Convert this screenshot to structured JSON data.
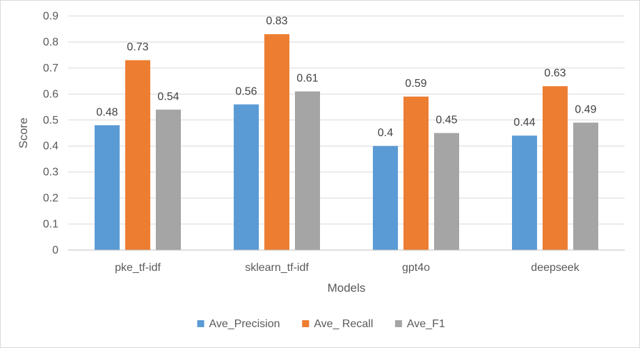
{
  "chart_data": {
    "type": "bar",
    "title": "",
    "xlabel": "Models",
    "ylabel": "Score",
    "categories": [
      "pke_tf-idf",
      "sklearn_tf-idf",
      "gpt4o",
      "deepseek"
    ],
    "series": [
      {
        "name": "Ave_Precision",
        "values": [
          0.48,
          0.56,
          0.4,
          0.44
        ],
        "labels": [
          "0.48",
          "0.56",
          "0.4",
          "0.44"
        ],
        "color": "#5b9bd5"
      },
      {
        "name": "Ave_ Recall",
        "values": [
          0.73,
          0.83,
          0.59,
          0.63
        ],
        "labels": [
          "0.73",
          "0.83",
          "0.59",
          "0.63"
        ],
        "color": "#ed7d31"
      },
      {
        "name": "Ave_F1",
        "values": [
          0.54,
          0.61,
          0.45,
          0.49
        ],
        "labels": [
          "0.54",
          "0.61",
          "0.45",
          "0.49"
        ],
        "color": "#a5a5a5"
      }
    ],
    "ylim": [
      0,
      0.9
    ],
    "yticks": [
      "0",
      "0.1",
      "0.2",
      "0.3",
      "0.4",
      "0.5",
      "0.6",
      "0.7",
      "0.8",
      "0.9"
    ],
    "grid": true,
    "legend": "bottom",
    "gridColor": "#d9d9d9",
    "axisColor": "#bfbfbf"
  }
}
